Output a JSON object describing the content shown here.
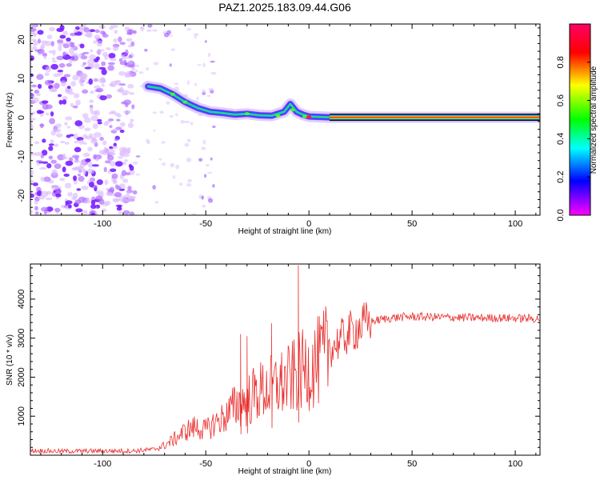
{
  "chart_data": [
    {
      "type": "heatmap",
      "title": "PAZ1.2025.183.09.44.G06",
      "xlabel": "Height of straight line (km)",
      "ylabel": "Frequency (Hz)",
      "xlim": [
        -135,
        112
      ],
      "ylim": [
        -25,
        24
      ],
      "xticks": [
        -100,
        -50,
        0,
        50,
        100
      ],
      "yticks": [
        -20,
        -10,
        0,
        10,
        20
      ],
      "colorbar": {
        "label": "Normalized spectral amplitude",
        "range": [
          0,
          1
        ],
        "ticks": [
          0.0,
          0.2,
          0.4,
          0.6,
          0.8
        ],
        "colormap": [
          "#ff00ff",
          "#0000ff",
          "#00ffff",
          "#00ff00",
          "#ffff00",
          "#ff0000",
          "#ff0066"
        ]
      },
      "ridge": {
        "x": [
          -78,
          -72,
          -66,
          -60,
          -54,
          -48,
          -42,
          -36,
          -30,
          -24,
          -18,
          -12,
          -9,
          -6,
          -3,
          0,
          5,
          10,
          20,
          40,
          60,
          80,
          100,
          110
        ],
        "y": [
          8,
          7.5,
          6,
          4,
          2.5,
          1.5,
          1.2,
          0.8,
          1.0,
          0.6,
          0.5,
          1.5,
          3.5,
          1.5,
          0.8,
          0.3,
          0.2,
          0.1,
          0.1,
          0.1,
          0.1,
          0.1,
          0.1,
          0.1
        ]
      },
      "grid": false
    },
    {
      "type": "line",
      "xlabel": "Height of straight line (km)",
      "ylabel": "SNR (10 * v/v)",
      "xlim": [
        -135,
        112
      ],
      "ylim": [
        0,
        4900
      ],
      "xticks": [
        -100,
        -50,
        0,
        50,
        100
      ],
      "yticks": [
        1000,
        2000,
        3000,
        4000
      ],
      "color": "#e8302e",
      "x": [
        -135,
        -120,
        -100,
        -85,
        -75,
        -70,
        -65,
        -60,
        -55,
        -50,
        -45,
        -40,
        -35,
        -30,
        -25,
        -20,
        -15,
        -10,
        -5,
        0,
        5,
        10,
        15,
        20,
        25,
        30,
        35,
        40,
        45,
        50,
        60,
        70,
        80,
        90,
        100,
        112
      ],
      "y": [
        120,
        100,
        110,
        110,
        150,
        250,
        420,
        620,
        720,
        640,
        850,
        1000,
        1300,
        1400,
        1600,
        1700,
        1800,
        1900,
        2100,
        2250,
        2400,
        2700,
        2950,
        3150,
        3300,
        3420,
        3480,
        3520,
        3540,
        3550,
        3540,
        3530,
        3520,
        3520,
        3510,
        3500
      ],
      "spikes": [
        {
          "x": -33,
          "y": 3100
        },
        {
          "x": -30,
          "y": 3050
        },
        {
          "x": -18,
          "y": 3380
        },
        {
          "x": -5,
          "y": 4870
        }
      ],
      "grid": false
    }
  ]
}
